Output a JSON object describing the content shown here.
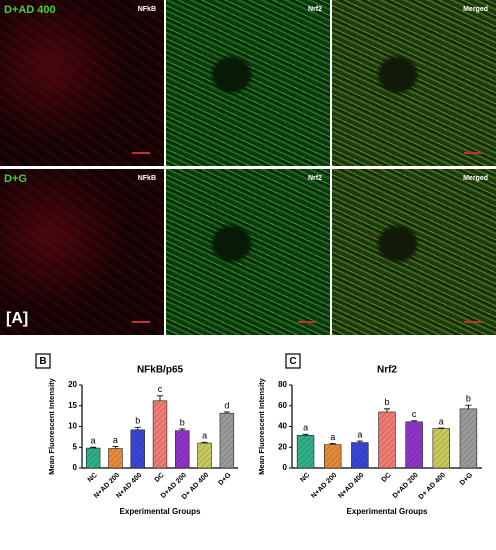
{
  "images": {
    "rows": [
      {
        "label": "D+AD 400",
        "panels": [
          "NFkB",
          "Nrf2",
          "Merged"
        ]
      },
      {
        "label": "D+G",
        "panels": [
          "NFkB",
          "Nrf2",
          "Merged"
        ]
      }
    ],
    "panel_label": "[A]"
  },
  "chart_data": [
    {
      "type": "bar",
      "panel": "B",
      "title": "NFkB/p65",
      "ylabel": "Mean Fluorescent Intensity",
      "xlabel": "Experimental Groups",
      "categories": [
        "NC",
        "N+AD 200",
        "N+AD 400",
        "DC",
        "D+AD 200",
        "D+ AD 400",
        "D+G"
      ],
      "values": [
        4.8,
        4.7,
        9.2,
        16.2,
        9.0,
        6.0,
        13.2
      ],
      "errors": [
        0.2,
        0.5,
        0.6,
        1.2,
        0.4,
        0.2,
        0.3
      ],
      "significance": [
        "a",
        "a",
        "b",
        "c",
        "b",
        "a",
        "d"
      ],
      "colors": [
        "#2fae8a",
        "#e58a3a",
        "#3a45d8",
        "#f07a74",
        "#8e35c8",
        "#c9c85a",
        "#9a9a9a"
      ],
      "ylim": [
        0,
        20
      ],
      "yticks": [
        0,
        5,
        10,
        15,
        20
      ]
    },
    {
      "type": "bar",
      "panel": "C",
      "title": "Nrf2",
      "ylabel": "Mean Fluorescent Intensity",
      "xlabel": "Experimental Groups",
      "categories": [
        "NC",
        "N+AD 200",
        "N+AD 400",
        "DC",
        "D+AD 200",
        "D+ AD 400",
        "D+G"
      ],
      "values": [
        31.5,
        22.5,
        24.5,
        54,
        44.5,
        38,
        57
      ],
      "errors": [
        1,
        1,
        1.5,
        3,
        1,
        0.5,
        3.5
      ],
      "significance": [
        "a",
        "a",
        "a",
        "b",
        "c",
        "a",
        "b"
      ],
      "colors": [
        "#2fae8a",
        "#e58a3a",
        "#3a45d8",
        "#f07a74",
        "#8e35c8",
        "#c9c85a",
        "#9a9a9a"
      ],
      "ylim": [
        0,
        80
      ],
      "yticks": [
        0,
        20,
        40,
        60,
        80
      ]
    }
  ]
}
